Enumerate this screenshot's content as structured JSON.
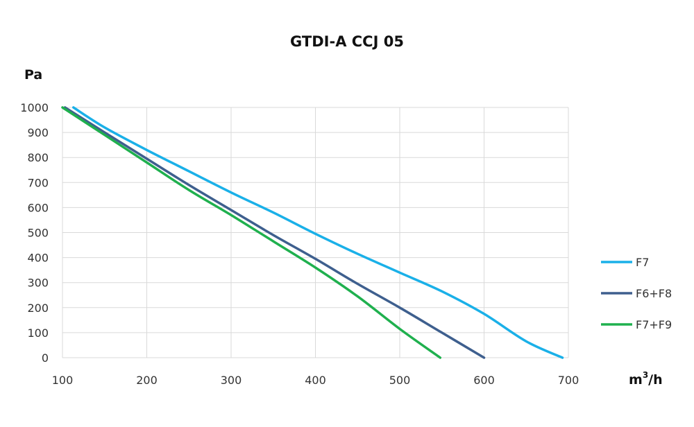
{
  "chart_data": {
    "type": "line",
    "title": "GTDI-A CCJ 05",
    "ylabel": "Pa",
    "xlabel_base": "m",
    "xlabel_sup": "3",
    "xlabel_tail": "/h",
    "xlim": [
      100,
      700
    ],
    "ylim": [
      0,
      1000
    ],
    "xticks": [
      100,
      200,
      300,
      400,
      500,
      600,
      700
    ],
    "yticks": [
      0,
      100,
      200,
      300,
      400,
      500,
      600,
      700,
      800,
      900,
      1000
    ],
    "grid": true,
    "legend_position": "right",
    "series": [
      {
        "name": "F7",
        "color": "#1ab0e8",
        "points": [
          [
            113,
            1000
          ],
          [
            150,
            920
          ],
          [
            200,
            830
          ],
          [
            250,
            745
          ],
          [
            300,
            660
          ],
          [
            350,
            580
          ],
          [
            400,
            495
          ],
          [
            450,
            415
          ],
          [
            500,
            340
          ],
          [
            550,
            265
          ],
          [
            600,
            175
          ],
          [
            650,
            65
          ],
          [
            693,
            0
          ]
        ]
      },
      {
        "name": "F6+F8",
        "color": "#3e5f8e",
        "points": [
          [
            103,
            1000
          ],
          [
            150,
            900
          ],
          [
            200,
            795
          ],
          [
            250,
            690
          ],
          [
            300,
            590
          ],
          [
            350,
            490
          ],
          [
            400,
            395
          ],
          [
            450,
            295
          ],
          [
            500,
            200
          ],
          [
            550,
            100
          ],
          [
            600,
            0
          ]
        ]
      },
      {
        "name": "F7+F9",
        "color": "#1fb04e",
        "points": [
          [
            100,
            1000
          ],
          [
            150,
            890
          ],
          [
            200,
            780
          ],
          [
            250,
            670
          ],
          [
            300,
            570
          ],
          [
            350,
            465
          ],
          [
            400,
            360
          ],
          [
            450,
            245
          ],
          [
            500,
            115
          ],
          [
            548,
            0
          ]
        ]
      }
    ]
  }
}
